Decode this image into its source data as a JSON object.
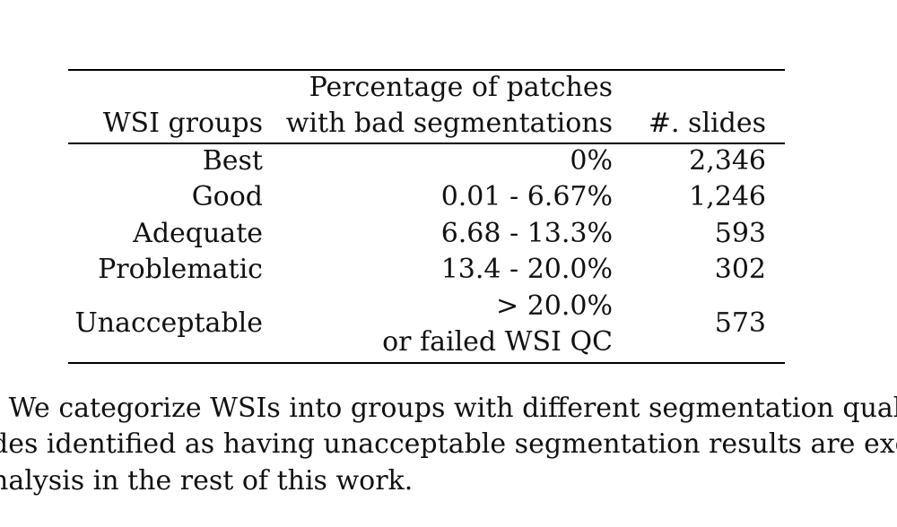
{
  "table": {
    "header": {
      "col1": "WSI groups",
      "col2_line1": "Percentage of patches",
      "col2_line2": "with bad segmentations",
      "col3": "#. slides"
    },
    "rows": [
      {
        "group": "Best",
        "percentage": "0%",
        "slides": "2,346"
      },
      {
        "group": "Good",
        "percentage": "0.01 - 6.67%",
        "slides": "1,246"
      },
      {
        "group": "Adequate",
        "percentage": "6.68 - 13.3%",
        "slides": "593"
      },
      {
        "group": "Problematic",
        "percentage": "13.4 - 20.0%",
        "slides": "302"
      },
      {
        "group": "Unacceptable",
        "percentage_line1": "> 20.0%",
        "percentage_line2": "or failed WSI QC",
        "slides": "573"
      }
    ]
  },
  "caption": {
    "line1": ": We categorize WSIs into groups with different segmentation quality",
    "line2": "des identified as having unacceptable segmentation results are exclu",
    "line3": "nalysis in the rest of this work."
  }
}
